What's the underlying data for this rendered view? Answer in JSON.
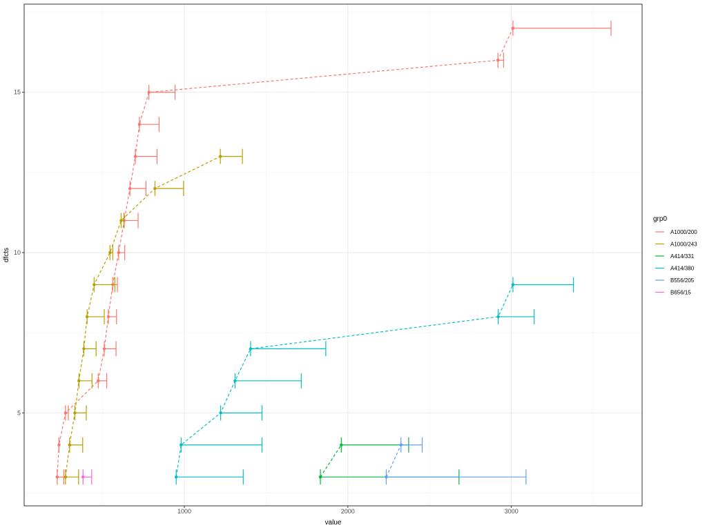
{
  "chart_data": {
    "type": "line",
    "title": "",
    "xlabel": "value",
    "ylabel": "dfcts",
    "xlim": [
      20,
      3800
    ],
    "ylim": [
      2.1,
      17.75
    ],
    "x_ticks": [
      1000,
      2000,
      3000
    ],
    "y_ticks": [
      5,
      10,
      15
    ],
    "grid": true,
    "legend": {
      "title": "grp0",
      "position": "right"
    },
    "series": [
      {
        "name": "A1000/200",
        "color": "#F8766D",
        "points": [
          {
            "y": 3,
            "x": 222,
            "xmax": 262
          },
          {
            "y": 4,
            "x": 233,
            "xmax": 233
          },
          {
            "y": 5,
            "x": 273,
            "xmax": 290
          },
          {
            "y": 6,
            "x": 473,
            "xmax": 525
          },
          {
            "y": 7,
            "x": 510,
            "xmax": 582
          },
          {
            "y": 8,
            "x": 535,
            "xmax": 585
          },
          {
            "y": 9,
            "x": 562,
            "xmax": 590
          },
          {
            "y": 10,
            "x": 598,
            "xmax": 635
          },
          {
            "y": 11,
            "x": 632,
            "xmax": 717
          },
          {
            "y": 12,
            "x": 667,
            "xmax": 765
          },
          {
            "y": 13,
            "x": 700,
            "xmax": 833
          },
          {
            "y": 14,
            "x": 725,
            "xmax": 845
          },
          {
            "y": 15,
            "x": 783,
            "xmax": 943
          },
          {
            "y": 16,
            "x": 2918,
            "xmax": 2953
          },
          {
            "y": 17,
            "x": 3010,
            "xmax": 3610
          }
        ]
      },
      {
        "name": "A1000/243",
        "color": "#B79F00",
        "points": [
          {
            "y": 3,
            "x": 273,
            "xmax": 353
          },
          {
            "y": 4,
            "x": 298,
            "xmax": 378
          },
          {
            "y": 5,
            "x": 330,
            "xmax": 400
          },
          {
            "y": 6,
            "x": 355,
            "xmax": 435
          },
          {
            "y": 7,
            "x": 385,
            "xmax": 460
          },
          {
            "y": 8,
            "x": 405,
            "xmax": 510
          },
          {
            "y": 9,
            "x": 448,
            "xmax": 575
          },
          {
            "y": 10,
            "x": 545,
            "xmax": 562
          },
          {
            "y": 11,
            "x": 613,
            "xmax": 630
          },
          {
            "y": 12,
            "x": 820,
            "xmax": 995
          },
          {
            "y": 13,
            "x": 1220,
            "xmax": 1355
          }
        ]
      },
      {
        "name": "A414/331",
        "color": "#00BA38",
        "points": [
          {
            "y": 3,
            "x": 1832,
            "xmax": 2680
          },
          {
            "y": 4,
            "x": 1960,
            "xmax": 2372
          }
        ]
      },
      {
        "name": "A414/380",
        "color": "#00BFC4",
        "points": [
          {
            "y": 3,
            "x": 950,
            "xmax": 1360
          },
          {
            "y": 4,
            "x": 980,
            "xmax": 1475
          },
          {
            "y": 5,
            "x": 1222,
            "xmax": 1475
          },
          {
            "y": 6,
            "x": 1310,
            "xmax": 1715
          },
          {
            "y": 7,
            "x": 1405,
            "xmax": 1865
          },
          {
            "y": 8,
            "x": 2920,
            "xmax": 3140
          },
          {
            "y": 9,
            "x": 3010,
            "xmax": 3380
          }
        ]
      },
      {
        "name": "B556/205",
        "color": "#619CFF",
        "points": [
          {
            "y": 3,
            "x": 2235,
            "xmax": 3090
          },
          {
            "y": 4,
            "x": 2325,
            "xmax": 2455
          }
        ]
      },
      {
        "name": "B656/15",
        "color": "#F564E3",
        "points": [
          {
            "y": 3,
            "x": 380,
            "xmax": 433
          }
        ]
      }
    ]
  }
}
